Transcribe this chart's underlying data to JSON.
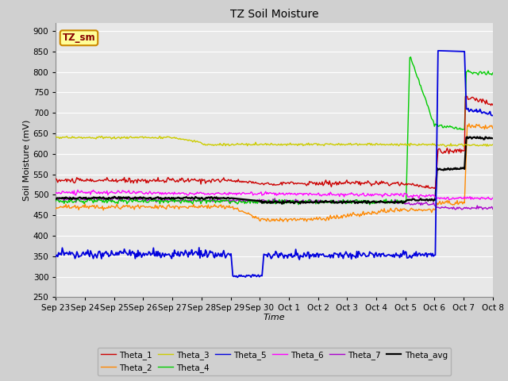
{
  "title": "TZ Soil Moisture",
  "xlabel": "Time",
  "ylabel": "Soil Moisture (mV)",
  "ylim": [
    250,
    920
  ],
  "yticks": [
    250,
    300,
    350,
    400,
    450,
    500,
    550,
    600,
    650,
    700,
    750,
    800,
    850,
    900
  ],
  "fig_bg": "#d0d0d0",
  "plot_bg": "#e8e8e8",
  "grid_color": "#ffffff",
  "annotation_text": "TZ_sm",
  "annotation_bg": "#ffff99",
  "annotation_border": "#cc8800",
  "line_colors": {
    "Theta_1": "#cc0000",
    "Theta_2": "#ff8800",
    "Theta_3": "#cccc00",
    "Theta_4": "#00cc00",
    "Theta_5": "#0000dd",
    "Theta_6": "#ff00ff",
    "Theta_7": "#aa00cc",
    "Theta_avg": "#000000"
  },
  "xtick_labels": [
    "Sep 23",
    "Sep 24",
    "Sep 25",
    "Sep 26",
    "Sep 27",
    "Sep 28",
    "Sep 29",
    "Sep 30",
    "Oct 1",
    "Oct 2",
    "Oct 3",
    "Oct 4",
    "Oct 5",
    "Oct 6",
    "Oct 7",
    "Oct 8"
  ]
}
